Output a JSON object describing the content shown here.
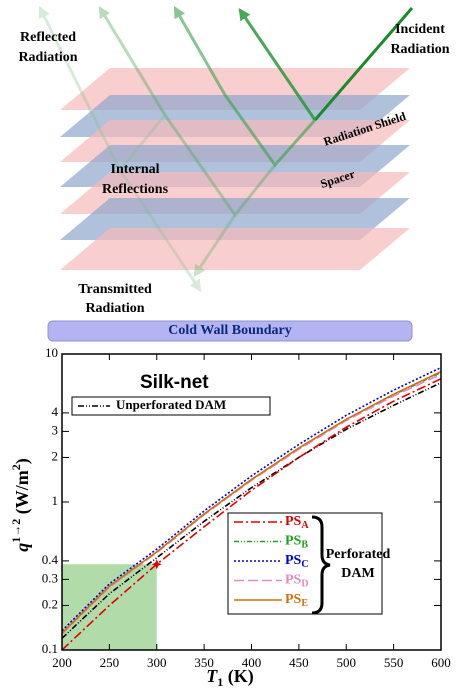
{
  "diagram": {
    "reflected": [
      "Reflected",
      "Radiation"
    ],
    "incident": [
      "Incident",
      "Radiation"
    ],
    "shield": "Radiation Shield",
    "spacer": "Spacer",
    "internal": [
      "Internal",
      "Reflections"
    ],
    "transmitted": [
      "Transmitted",
      "Radiation"
    ],
    "boundary": "Cold Wall Boundary"
  },
  "chart_data": {
    "type": "line",
    "title": "Silk-net",
    "xlabel": "T",
    "xlabel_sub": "1",
    "xlabel_unit": " (K)",
    "ylabel": "q",
    "ylabel_sup": "1→2",
    "ylabel_unit": " (W/m",
    "ylabel_unit_sup": "2",
    "ylabel_end": ")",
    "x": [
      200,
      250,
      300,
      350,
      400,
      450,
      500,
      550,
      600
    ],
    "xlim": [
      200,
      600
    ],
    "xticks": [
      200,
      250,
      300,
      350,
      400,
      450,
      500,
      550,
      600
    ],
    "ylim": [
      0.1,
      10
    ],
    "yticks": [
      0.1,
      0.2,
      0.3,
      0.4,
      1,
      2,
      3,
      4,
      10
    ],
    "ylog": true,
    "series": [
      {
        "name": "Unperforated DAM",
        "color": "#000000",
        "dash": "6,2,1,2,1,2",
        "values": [
          0.12,
          0.24,
          0.42,
          0.74,
          1.25,
          2.0,
          3.1,
          4.5,
          6.4
        ]
      },
      {
        "name": "PS",
        "sub": "A",
        "color": "#e00000",
        "dash": "9,3,2,3",
        "values": [
          0.1,
          0.2,
          0.38,
          0.68,
          1.2,
          2.0,
          3.2,
          4.8,
          6.8
        ]
      },
      {
        "name": "PS",
        "sub": "B",
        "color": "#22a022",
        "dash": "5,2,1,2,1,2",
        "values": [
          0.13,
          0.27,
          0.46,
          0.83,
          1.42,
          2.3,
          3.6,
          5.3,
          7.5
        ]
      },
      {
        "name": "PS",
        "sub": "C",
        "color": "#0000dd",
        "dash": "2,2",
        "values": [
          0.135,
          0.28,
          0.48,
          0.87,
          1.5,
          2.45,
          3.85,
          5.7,
          8.1
        ]
      },
      {
        "name": "PS",
        "sub": "D",
        "color": "#e08cc0",
        "dash": "10,4",
        "values": [
          0.128,
          0.265,
          0.455,
          0.82,
          1.4,
          2.27,
          3.55,
          5.2,
          7.3
        ]
      },
      {
        "name": "PS",
        "sub": "E",
        "color": "#d07010",
        "dash": "",
        "values": [
          0.13,
          0.27,
          0.46,
          0.83,
          1.42,
          2.32,
          3.62,
          5.35,
          7.6
        ]
      }
    ],
    "group_label": [
      "Perforated",
      "DAM"
    ],
    "highlight": {
      "x": [
        200,
        300
      ],
      "y": [
        0.1,
        0.38
      ],
      "color": "#a8d8a0"
    },
    "marker": {
      "x": 300,
      "y": 0.38,
      "color": "#e00000"
    }
  }
}
